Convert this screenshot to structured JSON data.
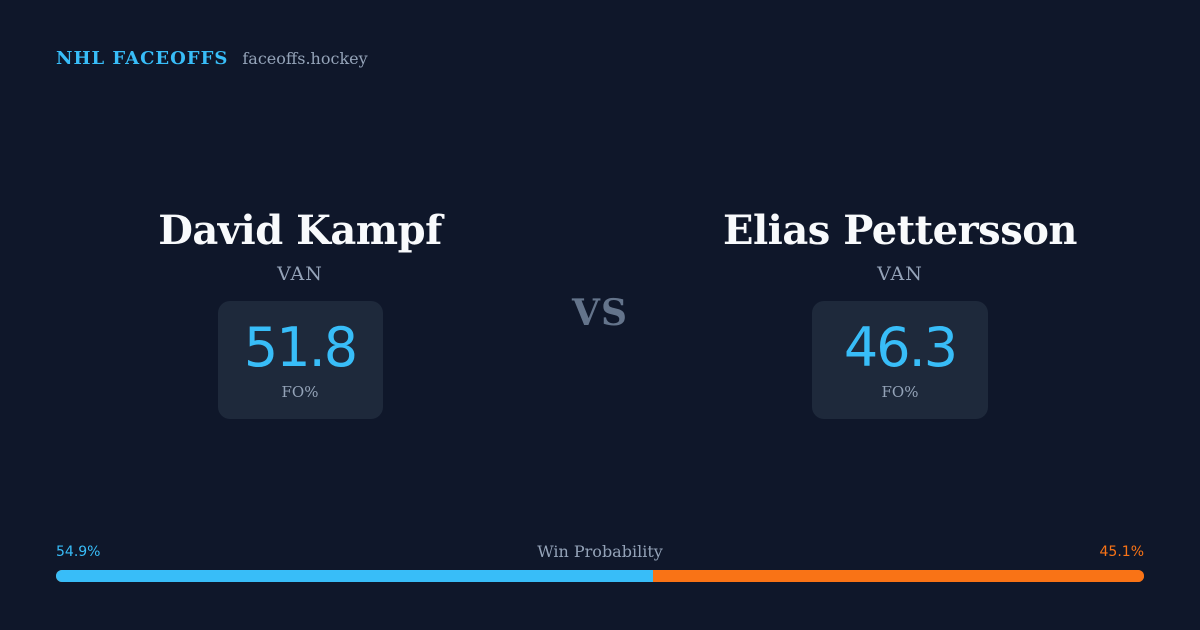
{
  "brand": {
    "name": "NHL FACEOFFS",
    "domain": "faceoffs.hockey"
  },
  "players": [
    {
      "name": "David Kampf",
      "team": "VAN",
      "stat_value": "51.8",
      "stat_label": "FO%"
    },
    {
      "name": "Elias Pettersson",
      "team": "VAN",
      "stat_value": "46.3",
      "stat_label": "FO%"
    }
  ],
  "vs_label": "VS",
  "win_probability": {
    "title": "Win Probability",
    "left_label": "54.9%",
    "right_label": "45.1%",
    "left_value": 54.9,
    "right_value": 45.1
  },
  "colors": {
    "background": "#0f172a",
    "card": "#1e293b",
    "accent_left": "#38bdf8",
    "accent_right": "#f97316",
    "muted": "#94a3b8"
  }
}
